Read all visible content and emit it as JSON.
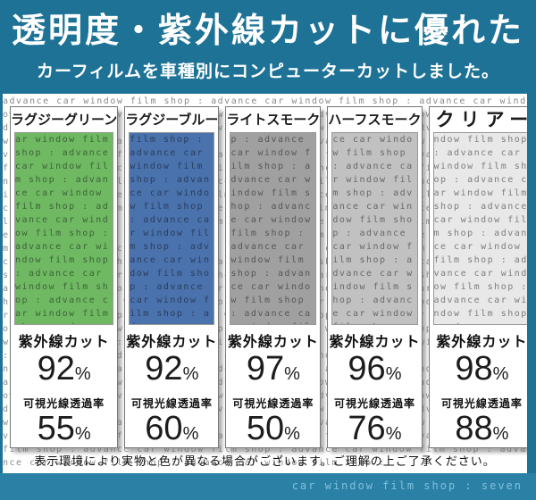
{
  "header": {
    "title": "透明度・紫外線カットに優れた",
    "subtitle": "カーフィルムを車種別にコンピューターカットしました。"
  },
  "watermark": {
    "text": "advance car window film shop : ",
    "repeat": 70
  },
  "percent_sign": "%",
  "panels": [
    {
      "name": "ラグジーグリーン",
      "color": "#6fb963",
      "uv_label": "紫外線カット",
      "uv_value": "92",
      "vlt_label": "可視光線透過率",
      "vlt_value": "55"
    },
    {
      "name": "ラグジーブルー",
      "color": "#4a72ad",
      "uv_label": "紫外線カット",
      "uv_value": "92",
      "vlt_label": "可視光線透過率",
      "vlt_value": "60"
    },
    {
      "name": "ライトスモーク",
      "color": "#a0a0a0",
      "uv_label": "紫外線カット",
      "uv_value": "97",
      "vlt_label": "可視光線透過率",
      "vlt_value": "50"
    },
    {
      "name": "ハーフスモーク",
      "color": "#c1c1c1",
      "uv_label": "紫外線カット",
      "uv_value": "96",
      "vlt_label": "可視光線透過率",
      "vlt_value": "76"
    },
    {
      "name": "クリアー",
      "color": "#e8e8e8",
      "uv_label": "紫外線カット",
      "uv_value": "98",
      "vlt_label": "可視光線透過率",
      "vlt_value": "88"
    }
  ],
  "disclaimer": "表示環境により実物と色が異なる場合がございます。ご理解の上ご了承ください。",
  "footer": {
    "shop_name": "car window film shop : seven"
  },
  "colors": {
    "header_bg": "#1d7296",
    "footer_bg": "#2b80a6",
    "watermark_text": "#8a8a8a",
    "content_bg": "#ffffff"
  }
}
